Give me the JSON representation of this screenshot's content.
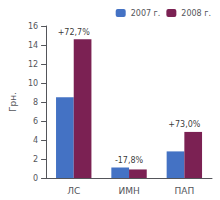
{
  "chart_data": {
    "type": "bar",
    "categories": [
      "ЛС",
      "ИМН",
      "ПАП"
    ],
    "series": [
      {
        "name": "2007 г.",
        "color": "#4472c4",
        "values": [
          8.5,
          1.1,
          2.8
        ]
      },
      {
        "name": "2008 г.",
        "color": "#7b2153",
        "values": [
          14.6,
          0.9,
          4.85
        ]
      }
    ],
    "annotations": [
      "+72,7%",
      "-17,8%",
      "+73,0%"
    ],
    "ylabel": "Грн.",
    "ylim": [
      0,
      16
    ],
    "yticks": [
      0,
      2,
      4,
      6,
      8,
      10,
      12,
      14,
      16
    ],
    "grid": false,
    "legend": "upper right"
  }
}
